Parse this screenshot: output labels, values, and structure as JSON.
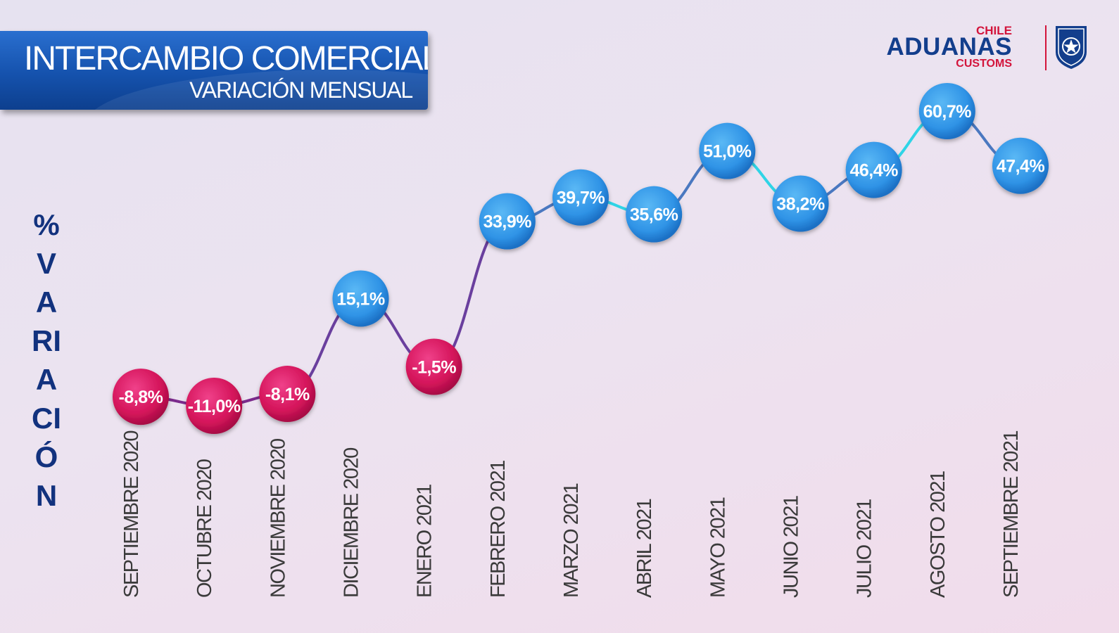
{
  "header": {
    "title": "INTERCAMBIO COMERCIAL",
    "subtitle": "VARIACIÓN MENSUAL"
  },
  "logo": {
    "chile": "CHILE",
    "aduanas": "ADUANAS",
    "customs": "CUSTOMS",
    "shield_icon": "aduanas-shield-star-icon"
  },
  "colors": {
    "negative_bubble": "#d4145a",
    "positive_bubble": "#2f93e6",
    "title_bg": "#1552ad",
    "ylabel": "#12327e"
  },
  "chart_data": {
    "type": "line",
    "title": "INTERCAMBIO COMERCIAL",
    "subtitle": "VARIACIÓN MENSUAL",
    "ylabel": "% VARIACIÓN",
    "xlabel": "",
    "categories": [
      "SEPTIEMBRE 2020",
      "OCTUBRE 2020",
      "NOVIEMBRE 2020",
      "DICIEMBRE 2020",
      "ENERO 2021",
      "FEBRERO 2021",
      "MARZO 2021",
      "ABRIL  2021",
      "MAYO 2021",
      "JUNIO 2021",
      "JULIO 2021",
      "AGOSTO 2021",
      "SEPTIEMBRE  2021"
    ],
    "values": [
      -8.8,
      -11.0,
      -8.1,
      15.1,
      -1.5,
      33.9,
      39.7,
      35.6,
      51.0,
      38.2,
      46.4,
      60.7,
      47.4
    ],
    "labels": [
      "-8,8%",
      "-11,0%",
      "-8,1%",
      "15,1%",
      "-1,5%",
      "33,9%",
      "39,7%",
      "35,6%",
      "51,0%",
      "38,2%",
      "46,4%",
      "60,7%",
      "47,4%"
    ],
    "grid": false,
    "legend": "none"
  }
}
